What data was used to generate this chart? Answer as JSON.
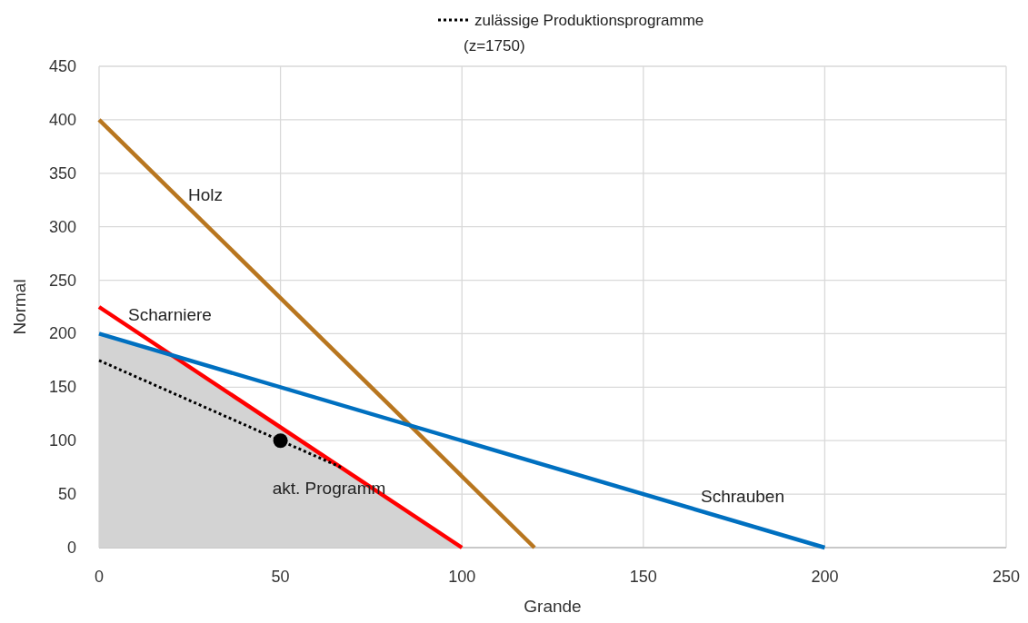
{
  "chart_data": {
    "type": "line",
    "xlabel": "Grande",
    "ylabel": "Normal",
    "xlim": [
      0,
      250
    ],
    "ylim": [
      0,
      450
    ],
    "xticks": [
      0,
      50,
      100,
      150,
      200,
      250
    ],
    "yticks": [
      0,
      50,
      100,
      150,
      200,
      250,
      300,
      350,
      400,
      450
    ],
    "grid": true,
    "legend": "top",
    "series": [
      {
        "type": "area",
        "color": "#d3d3d3",
        "x": [
          0,
          20,
          100
        ],
        "values": [
          200,
          180,
          0
        ]
      },
      {
        "color": "#b8761f",
        "x": [
          0,
          120
        ],
        "values": [
          400,
          0
        ]
      },
      {
        "color": "#ff0000",
        "x": [
          0,
          100
        ],
        "values": [
          225,
          0
        ]
      },
      {
        "color": "#0070c0",
        "x": [
          0,
          200
        ],
        "values": [
          200,
          0
        ]
      },
      {
        "name": "zulässige Produktionsprogramme (z=1750)",
        "color": "#000000",
        "line_style": "dotted",
        "x": [
          0,
          66.7
        ],
        "values": [
          175,
          75
        ]
      },
      {
        "type": "scatter",
        "color": "#000000",
        "marker": "circle",
        "x": [
          50
        ],
        "values": [
          100
        ]
      }
    ],
    "annotations": [
      "Holz",
      "Scharniere",
      "Schrauben",
      "akt. Programm"
    ]
  }
}
